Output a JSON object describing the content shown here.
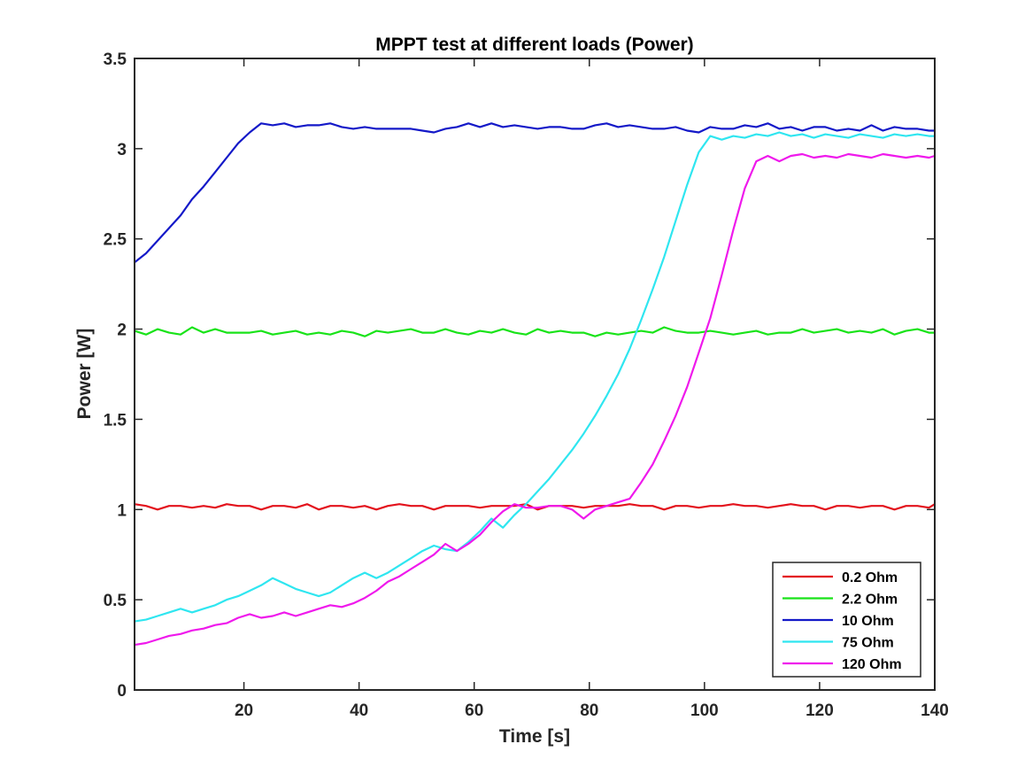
{
  "chart_data": {
    "type": "line",
    "title": "MPPT test at different loads (Power)",
    "xlabel": "Time [s]",
    "ylabel": "Power [W]",
    "xlim": [
      1,
      140
    ],
    "ylim": [
      0,
      3.5
    ],
    "xticks": [
      20,
      40,
      60,
      80,
      100,
      120,
      140
    ],
    "yticks": [
      0,
      0.5,
      1,
      1.5,
      2,
      2.5,
      3,
      3.5
    ],
    "xtick_labels": [
      "20",
      "40",
      "60",
      "80",
      "100",
      "120",
      "140"
    ],
    "ytick_labels": [
      "0",
      "0.5",
      "1",
      "1.5",
      "2",
      "2.5",
      "3",
      "3.5"
    ],
    "grid": false,
    "legend_position": "bottom-right",
    "series": [
      {
        "name": "0.2 Ohm",
        "color": "#e3121c",
        "x": [
          1,
          3,
          5,
          7,
          9,
          11,
          13,
          15,
          17,
          19,
          21,
          23,
          25,
          27,
          29,
          31,
          33,
          35,
          37,
          39,
          41,
          43,
          45,
          47,
          49,
          51,
          53,
          55,
          57,
          59,
          61,
          63,
          65,
          67,
          69,
          71,
          73,
          75,
          77,
          79,
          81,
          83,
          85,
          87,
          89,
          91,
          93,
          95,
          97,
          99,
          101,
          103,
          105,
          107,
          109,
          111,
          113,
          115,
          117,
          119,
          121,
          123,
          125,
          127,
          129,
          131,
          133,
          135,
          137,
          139,
          140
        ],
        "values": [
          1.03,
          1.02,
          1.0,
          1.02,
          1.02,
          1.01,
          1.02,
          1.01,
          1.03,
          1.02,
          1.02,
          1.0,
          1.02,
          1.02,
          1.01,
          1.03,
          1.0,
          1.02,
          1.02,
          1.01,
          1.02,
          1.0,
          1.02,
          1.03,
          1.02,
          1.02,
          1.0,
          1.02,
          1.02,
          1.02,
          1.01,
          1.02,
          1.02,
          1.02,
          1.03,
          1.0,
          1.02,
          1.02,
          1.02,
          1.01,
          1.02,
          1.02,
          1.02,
          1.03,
          1.02,
          1.02,
          1.0,
          1.02,
          1.02,
          1.01,
          1.02,
          1.02,
          1.03,
          1.02,
          1.02,
          1.01,
          1.02,
          1.03,
          1.02,
          1.02,
          1.0,
          1.02,
          1.02,
          1.01,
          1.02,
          1.02,
          1.0,
          1.02,
          1.02,
          1.01,
          1.03
        ]
      },
      {
        "name": "2.2 Ohm",
        "color": "#19e319",
        "x": [
          1,
          3,
          5,
          7,
          9,
          11,
          13,
          15,
          17,
          19,
          21,
          23,
          25,
          27,
          29,
          31,
          33,
          35,
          37,
          39,
          41,
          43,
          45,
          47,
          49,
          51,
          53,
          55,
          57,
          59,
          61,
          63,
          65,
          67,
          69,
          71,
          73,
          75,
          77,
          79,
          81,
          83,
          85,
          87,
          89,
          91,
          93,
          95,
          97,
          99,
          101,
          103,
          105,
          107,
          109,
          111,
          113,
          115,
          117,
          119,
          121,
          123,
          125,
          127,
          129,
          131,
          133,
          135,
          137,
          139,
          140
        ],
        "values": [
          1.99,
          1.97,
          2.0,
          1.98,
          1.97,
          2.01,
          1.98,
          2.0,
          1.98,
          1.98,
          1.98,
          1.99,
          1.97,
          1.98,
          1.99,
          1.97,
          1.98,
          1.97,
          1.99,
          1.98,
          1.96,
          1.99,
          1.98,
          1.99,
          2.0,
          1.98,
          1.98,
          2.0,
          1.98,
          1.97,
          1.99,
          1.98,
          2.0,
          1.98,
          1.97,
          2.0,
          1.98,
          1.99,
          1.98,
          1.98,
          1.96,
          1.98,
          1.97,
          1.98,
          1.99,
          1.98,
          2.01,
          1.99,
          1.98,
          1.98,
          1.99,
          1.98,
          1.97,
          1.98,
          1.99,
          1.97,
          1.98,
          1.98,
          2.0,
          1.98,
          1.99,
          2.0,
          1.98,
          1.99,
          1.98,
          2.0,
          1.97,
          1.99,
          2.0,
          1.98,
          1.98
        ]
      },
      {
        "name": "10 Ohm",
        "color": "#1419c8",
        "x": [
          1,
          3,
          5,
          7,
          9,
          11,
          13,
          15,
          17,
          19,
          21,
          23,
          25,
          27,
          29,
          31,
          33,
          35,
          37,
          39,
          41,
          43,
          45,
          47,
          49,
          51,
          53,
          55,
          57,
          59,
          61,
          63,
          65,
          67,
          69,
          71,
          73,
          75,
          77,
          79,
          81,
          83,
          85,
          87,
          89,
          91,
          93,
          95,
          97,
          99,
          101,
          103,
          105,
          107,
          109,
          111,
          113,
          115,
          117,
          119,
          121,
          123,
          125,
          127,
          129,
          131,
          133,
          135,
          137,
          139,
          140
        ],
        "values": [
          2.37,
          2.42,
          2.49,
          2.56,
          2.63,
          2.72,
          2.79,
          2.87,
          2.95,
          3.03,
          3.09,
          3.14,
          3.13,
          3.14,
          3.12,
          3.13,
          3.13,
          3.14,
          3.12,
          3.11,
          3.12,
          3.11,
          3.11,
          3.11,
          3.11,
          3.1,
          3.09,
          3.11,
          3.12,
          3.14,
          3.12,
          3.14,
          3.12,
          3.13,
          3.12,
          3.11,
          3.12,
          3.12,
          3.11,
          3.11,
          3.13,
          3.14,
          3.12,
          3.13,
          3.12,
          3.11,
          3.11,
          3.12,
          3.1,
          3.09,
          3.12,
          3.11,
          3.11,
          3.13,
          3.12,
          3.14,
          3.11,
          3.12,
          3.1,
          3.12,
          3.12,
          3.1,
          3.11,
          3.1,
          3.13,
          3.1,
          3.12,
          3.11,
          3.11,
          3.1,
          3.1
        ]
      },
      {
        "name": "75 Ohm",
        "color": "#2fe6f0",
        "x": [
          1,
          3,
          5,
          7,
          9,
          11,
          13,
          15,
          17,
          19,
          21,
          23,
          25,
          27,
          29,
          31,
          33,
          35,
          37,
          39,
          41,
          43,
          45,
          47,
          49,
          51,
          53,
          55,
          57,
          59,
          61,
          63,
          65,
          67,
          69,
          71,
          73,
          75,
          77,
          79,
          81,
          83,
          85,
          87,
          89,
          91,
          93,
          95,
          97,
          99,
          101,
          103,
          105,
          107,
          109,
          111,
          113,
          115,
          117,
          119,
          121,
          123,
          125,
          127,
          129,
          131,
          133,
          135,
          137,
          139,
          140
        ],
        "values": [
          0.38,
          0.39,
          0.41,
          0.43,
          0.45,
          0.43,
          0.45,
          0.47,
          0.5,
          0.52,
          0.55,
          0.58,
          0.62,
          0.59,
          0.56,
          0.54,
          0.52,
          0.54,
          0.58,
          0.62,
          0.65,
          0.62,
          0.65,
          0.69,
          0.73,
          0.77,
          0.8,
          0.78,
          0.77,
          0.82,
          0.88,
          0.95,
          0.9,
          0.97,
          1.03,
          1.1,
          1.17,
          1.25,
          1.33,
          1.42,
          1.52,
          1.63,
          1.75,
          1.89,
          2.05,
          2.22,
          2.4,
          2.6,
          2.8,
          2.98,
          3.07,
          3.05,
          3.07,
          3.06,
          3.08,
          3.07,
          3.09,
          3.07,
          3.08,
          3.06,
          3.08,
          3.07,
          3.06,
          3.08,
          3.07,
          3.06,
          3.08,
          3.07,
          3.08,
          3.07,
          3.07
        ]
      },
      {
        "name": "120 Ohm",
        "color": "#ef19ec",
        "x": [
          1,
          3,
          5,
          7,
          9,
          11,
          13,
          15,
          17,
          19,
          21,
          23,
          25,
          27,
          29,
          31,
          33,
          35,
          37,
          39,
          41,
          43,
          45,
          47,
          49,
          51,
          53,
          55,
          57,
          59,
          61,
          63,
          65,
          67,
          69,
          71,
          73,
          75,
          77,
          79,
          81,
          83,
          85,
          87,
          89,
          91,
          93,
          95,
          97,
          99,
          101,
          103,
          105,
          107,
          109,
          111,
          113,
          115,
          117,
          119,
          121,
          123,
          125,
          127,
          129,
          131,
          133,
          135,
          137,
          139,
          140
        ],
        "values": [
          0.25,
          0.26,
          0.28,
          0.3,
          0.31,
          0.33,
          0.34,
          0.36,
          0.37,
          0.4,
          0.42,
          0.4,
          0.41,
          0.43,
          0.41,
          0.43,
          0.45,
          0.47,
          0.46,
          0.48,
          0.51,
          0.55,
          0.6,
          0.63,
          0.67,
          0.71,
          0.75,
          0.81,
          0.77,
          0.81,
          0.86,
          0.93,
          0.99,
          1.03,
          1.01,
          1.01,
          1.02,
          1.02,
          1.0,
          0.95,
          1.0,
          1.02,
          1.04,
          1.06,
          1.15,
          1.25,
          1.38,
          1.52,
          1.68,
          1.87,
          2.06,
          2.3,
          2.55,
          2.78,
          2.93,
          2.96,
          2.93,
          2.96,
          2.97,
          2.95,
          2.96,
          2.95,
          2.97,
          2.96,
          2.95,
          2.97,
          2.96,
          2.95,
          2.96,
          2.95,
          2.96
        ]
      }
    ]
  }
}
